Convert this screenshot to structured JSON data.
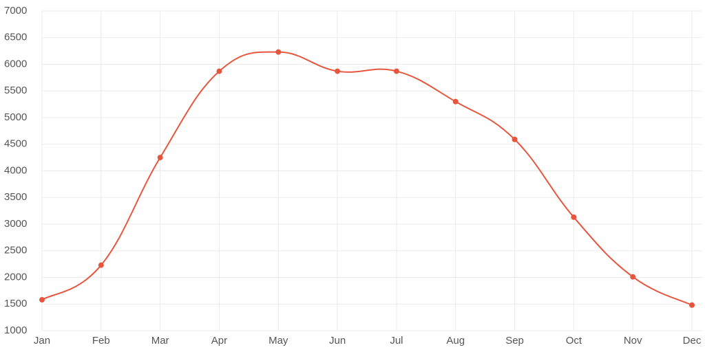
{
  "chart_data": {
    "type": "line",
    "categories": [
      "Jan",
      "Feb",
      "Mar",
      "Apr",
      "May",
      "Jun",
      "Jul",
      "Aug",
      "Sep",
      "Oct",
      "Nov",
      "Dec"
    ],
    "series": [
      {
        "color": "#e8553e",
        "values": [
          1580,
          2230,
          4250,
          5870,
          6230,
          5870,
          5870,
          5300,
          4590,
          3130,
          2010,
          1480
        ]
      }
    ],
    "ylim": [
      1000,
      7000
    ],
    "yticks": [
      1000,
      1500,
      2000,
      2500,
      3000,
      3500,
      4000,
      4500,
      5000,
      5500,
      6000,
      6500,
      7000
    ],
    "grid": true
  }
}
